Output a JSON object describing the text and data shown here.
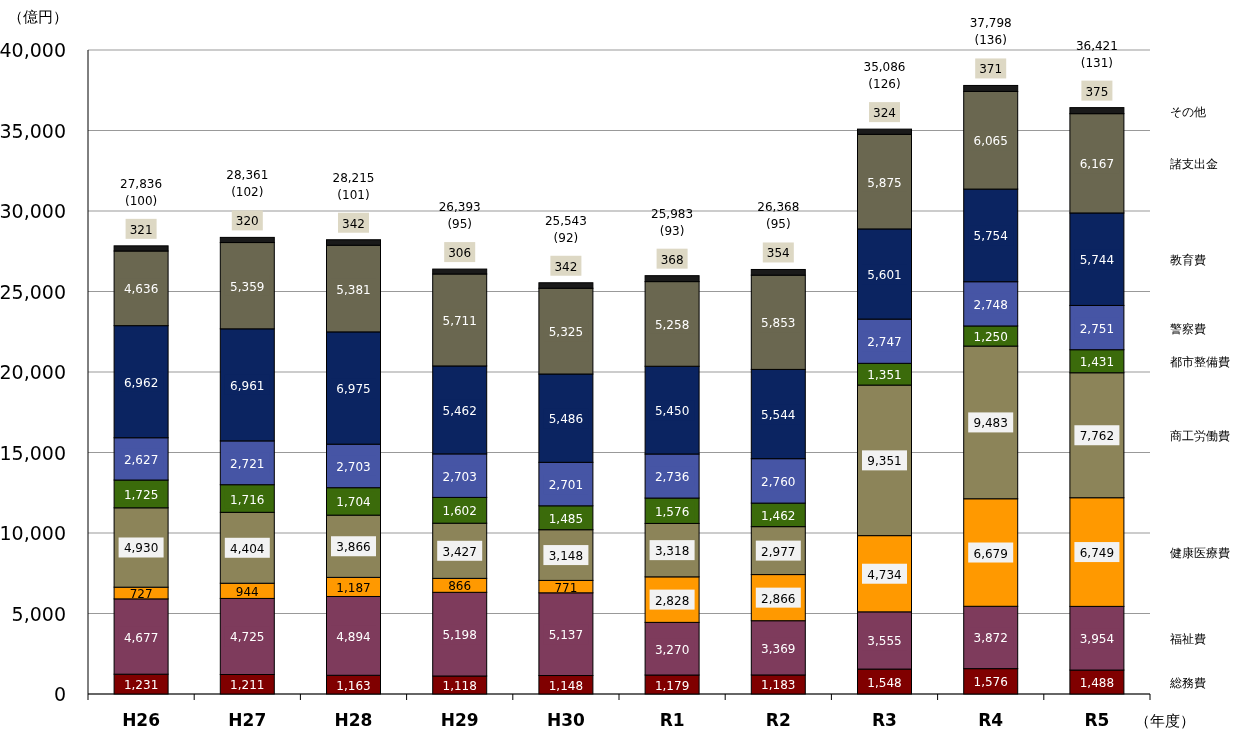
{
  "chart_data": {
    "type": "bar",
    "stacked": true,
    "ylabel": "（億円）",
    "xlabel": "（年度）",
    "categories": [
      "H26",
      "H27",
      "H28",
      "H29",
      "H30",
      "R1",
      "R2",
      "R3",
      "R4",
      "R5"
    ],
    "ylim": [
      0,
      40000
    ],
    "yticks": [
      0,
      {
        "value": 5000,
        "label": "5,000"
      },
      {
        "value": 10000,
        "label": "10,000"
      },
      {
        "value": 15000,
        "label": "15,000"
      },
      {
        "value": 20000,
        "label": "20,000"
      },
      {
        "value": 25000,
        "label": "25,000"
      },
      {
        "value": 30000,
        "label": "30,000"
      },
      {
        "value": 35000,
        "label": "35,000"
      },
      {
        "value": 40000,
        "label": "40,000"
      }
    ],
    "grid": "y",
    "legend": "right",
    "totals": [
      "27,836\n(100)",
      "28,361\n(102)",
      "28,215\n(101)",
      "26,393\n(95)",
      "25,543\n(92)",
      "25,983\n(93)",
      "26,368\n(95)",
      "35,086\n(126)",
      "37,798\n(136)",
      "36,421\n(131)"
    ],
    "series": [
      {
        "name": "総務費",
        "color": "#800000",
        "values": [
          1231,
          1211,
          1163,
          1118,
          1148,
          1179,
          1183,
          1548,
          1576,
          1488
        ],
        "value_labels": [
          "1,231",
          "1,211",
          "1,163",
          "1,118",
          "1,148",
          "1,179",
          "1,183",
          "1,548",
          "1,576",
          "1,488"
        ]
      },
      {
        "name": "福祉費",
        "color": "#7e3b5c",
        "values": [
          4677,
          4725,
          4894,
          5198,
          5137,
          3270,
          3369,
          3555,
          3872,
          3954
        ],
        "value_labels": [
          "4,677",
          "4,725",
          "4,894",
          "5,198",
          "5,137",
          "3,270",
          "3,369",
          "3,555",
          "3,872",
          "3,954"
        ]
      },
      {
        "name": "健康医療費",
        "color": "#ff9900",
        "values": [
          727,
          944,
          1187,
          866,
          771,
          2828,
          2866,
          4734,
          6679,
          6749
        ],
        "value_labels": [
          "727",
          "944",
          "1,187",
          "866",
          "771",
          "2,828",
          "2,866",
          "4,734",
          "6,679",
          "6,749"
        ]
      },
      {
        "name": "商工労働費",
        "color": "#8c8459",
        "values": [
          4930,
          4404,
          3866,
          3427,
          3148,
          3318,
          2977,
          9351,
          9483,
          7762
        ],
        "value_labels": [
          "4,930",
          "4,404",
          "3,866",
          "3,427",
          "3,148",
          "3,318",
          "2,977",
          "9,351",
          "9,483",
          "7,762"
        ]
      },
      {
        "name": "都市整備費",
        "color": "#3b6b0b",
        "values": [
          1725,
          1716,
          1704,
          1602,
          1485,
          1576,
          1462,
          1351,
          1250,
          1431
        ],
        "value_labels": [
          "1,725",
          "1,716",
          "1,704",
          "1,602",
          "1,485",
          "1,576",
          "1,462",
          "1,351",
          "1,250",
          "1,431"
        ]
      },
      {
        "name": "警察費",
        "color": "#4655a5",
        "values": [
          2627,
          2721,
          2703,
          2703,
          2701,
          2736,
          2760,
          2747,
          2748,
          2751
        ],
        "value_labels": [
          "2,627",
          "2,721",
          "2,703",
          "2,703",
          "2,701",
          "2,736",
          "2,760",
          "2,747",
          "2,748",
          "2,751"
        ]
      },
      {
        "name": "教育費",
        "color": "#0b2461",
        "values": [
          6962,
          6961,
          6975,
          5462,
          5486,
          5450,
          5544,
          5601,
          5754,
          5744
        ],
        "value_labels": [
          "6,962",
          "6,961",
          "6,975",
          "5,462",
          "5,486",
          "5,450",
          "5,544",
          "5,601",
          "5,754",
          "5,744"
        ]
      },
      {
        "name": "諸支出金",
        "color": "#6a6750",
        "values": [
          4636,
          5359,
          5381,
          5711,
          5325,
          5258,
          5853,
          5875,
          6065,
          6167
        ],
        "value_labels": [
          "4,636",
          "5,359",
          "5,381",
          "5,711",
          "5,325",
          "5,258",
          "5,853",
          "5,875",
          "6,065",
          "6,167"
        ]
      },
      {
        "name": "その他",
        "color": "#1a1a1a",
        "values": [
          321,
          320,
          342,
          306,
          342,
          368,
          354,
          324,
          371,
          375
        ],
        "value_labels": [
          "321",
          "320",
          "342",
          "306",
          "342",
          "368",
          "354",
          "324",
          "371",
          "375"
        ]
      }
    ]
  }
}
